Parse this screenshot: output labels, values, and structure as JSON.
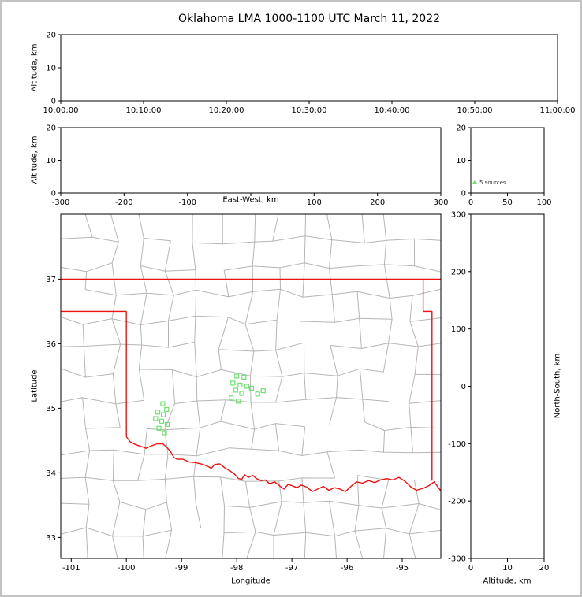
{
  "title": "Oklahoma LMA 1000-1100 UTC March 11, 2022",
  "labels": {
    "altitude_axis": "Altitude, km",
    "east_west_axis": "East-West, km",
    "north_south_axis": "North-South, km",
    "longitude_axis": "Longitude",
    "latitude_axis": "Latitude",
    "histogram_annotation": "5 sources"
  },
  "colors": {
    "state_border": "#ee1111",
    "county_line": "#b5b5b5",
    "station_marker": "#6fe06f",
    "axis_line": "#000000",
    "page_frame": "#c3c3c3",
    "annotation_text": "#333333"
  },
  "chart_data": [
    {
      "panel": "time-altitude",
      "type": "scatter",
      "xlabel": "",
      "ylabel": "Altitude, km",
      "xticks": [
        "10:00:00",
        "10:10:00",
        "10:20:00",
        "10:30:00",
        "10:40:00",
        "10:50:00",
        "11:00:00"
      ],
      "yticks": [
        0,
        10,
        20
      ],
      "ylim": [
        0,
        20
      ],
      "points": []
    },
    {
      "panel": "eastwest-altitude",
      "type": "scatter",
      "xlabel": "East-West, km",
      "ylabel": "Altitude, km",
      "xticks": [
        -300,
        -200,
        -100,
        0,
        100,
        200,
        300
      ],
      "xlim": [
        -300,
        300
      ],
      "yticks": [
        0,
        10,
        20
      ],
      "ylim": [
        0,
        20
      ],
      "points": []
    },
    {
      "panel": "altitude-histogram",
      "type": "histogram",
      "annotation": "5 sources",
      "xticks": [
        0,
        50,
        100
      ],
      "xlim": [
        0,
        100
      ],
      "yticks": [
        0,
        10,
        20
      ],
      "ylim": [
        0,
        20
      ],
      "points": []
    },
    {
      "panel": "plan-view-map",
      "type": "scatter",
      "xlabel": "Longitude",
      "ylabel": "Latitude",
      "xticks": [
        -101,
        -100,
        -99,
        -98,
        -97,
        -96,
        -95
      ],
      "xlim": [
        -101.19,
        -94.3
      ],
      "yticks": [
        33,
        34,
        35,
        36,
        37
      ],
      "ylim": [
        32.675,
        38.005
      ],
      "stations_lon_lat": [
        [
          -99.34,
          35.07
        ],
        [
          -99.27,
          34.98
        ],
        [
          -99.43,
          34.94
        ],
        [
          -99.33,
          34.9
        ],
        [
          -99.47,
          34.84
        ],
        [
          -99.36,
          34.8
        ],
        [
          -99.26,
          34.75
        ],
        [
          -99.41,
          34.69
        ],
        [
          -99.31,
          34.62
        ],
        [
          -98.0,
          35.5
        ],
        [
          -97.87,
          35.48
        ],
        [
          -98.07,
          35.39
        ],
        [
          -97.94,
          35.36
        ],
        [
          -97.82,
          35.34
        ],
        [
          -98.02,
          35.28
        ],
        [
          -97.91,
          35.23
        ],
        [
          -98.1,
          35.16
        ],
        [
          -97.97,
          35.11
        ],
        [
          -97.73,
          35.31
        ],
        [
          -97.62,
          35.22
        ],
        [
          -97.52,
          35.27
        ]
      ],
      "state_border_lon_lat": {
        "kansas_37n": [
          [
            -101.19,
            37.0
          ],
          [
            -94.3,
            37.0
          ]
        ],
        "west_36_5n": [
          [
            -101.19,
            36.5
          ],
          [
            -100.0,
            36.5
          ]
        ],
        "west_100w": [
          [
            -100.0,
            36.5
          ],
          [
            -100.0,
            34.56
          ]
        ],
        "east": [
          [
            -94.62,
            37.0
          ],
          [
            -94.62,
            36.5
          ],
          [
            -94.46,
            36.5
          ],
          [
            -94.46,
            33.88
          ]
        ],
        "red_river": [
          [
            -100.0,
            34.56
          ],
          [
            -99.93,
            34.48
          ],
          [
            -99.84,
            34.44
          ],
          [
            -99.74,
            34.41
          ],
          [
            -99.64,
            34.38
          ],
          [
            -99.54,
            34.42
          ],
          [
            -99.44,
            34.45
          ],
          [
            -99.34,
            34.45
          ],
          [
            -99.27,
            34.4
          ],
          [
            -99.2,
            34.33
          ],
          [
            -99.14,
            34.24
          ],
          [
            -99.08,
            34.21
          ],
          [
            -98.97,
            34.21
          ],
          [
            -98.87,
            34.17
          ],
          [
            -98.76,
            34.16
          ],
          [
            -98.65,
            34.14
          ],
          [
            -98.55,
            34.11
          ],
          [
            -98.46,
            34.07
          ],
          [
            -98.4,
            34.13
          ],
          [
            -98.31,
            34.14
          ],
          [
            -98.22,
            34.08
          ],
          [
            -98.12,
            34.03
          ],
          [
            -98.04,
            33.98
          ],
          [
            -97.97,
            33.91
          ],
          [
            -97.91,
            33.9
          ],
          [
            -97.86,
            33.97
          ],
          [
            -97.79,
            33.93
          ],
          [
            -97.71,
            33.96
          ],
          [
            -97.64,
            33.91
          ],
          [
            -97.56,
            33.88
          ],
          [
            -97.48,
            33.89
          ],
          [
            -97.4,
            33.83
          ],
          [
            -97.31,
            33.86
          ],
          [
            -97.21,
            33.79
          ],
          [
            -97.14,
            33.75
          ],
          [
            -97.07,
            33.82
          ],
          [
            -96.99,
            33.8
          ],
          [
            -96.91,
            33.77
          ],
          [
            -96.83,
            33.81
          ],
          [
            -96.73,
            33.78
          ],
          [
            -96.63,
            33.71
          ],
          [
            -96.53,
            33.75
          ],
          [
            -96.43,
            33.79
          ],
          [
            -96.33,
            33.73
          ],
          [
            -96.23,
            33.77
          ],
          [
            -96.13,
            33.75
          ],
          [
            -96.03,
            33.71
          ],
          [
            -95.93,
            33.79
          ],
          [
            -95.83,
            33.86
          ],
          [
            -95.72,
            33.84
          ],
          [
            -95.61,
            33.88
          ],
          [
            -95.5,
            33.85
          ],
          [
            -95.39,
            33.89
          ],
          [
            -95.28,
            33.91
          ],
          [
            -95.17,
            33.89
          ],
          [
            -95.06,
            33.93
          ],
          [
            -94.95,
            33.87
          ],
          [
            -94.84,
            33.78
          ],
          [
            -94.74,
            33.73
          ],
          [
            -94.62,
            33.76
          ],
          [
            -94.52,
            33.8
          ],
          [
            -94.42,
            33.86
          ],
          [
            -94.3,
            33.72
          ]
        ]
      }
    },
    {
      "panel": "altitude-northsouth",
      "type": "scatter",
      "xlabel": "Altitude, km",
      "ylabel": "North-South, km",
      "xticks": [
        0,
        10,
        20
      ],
      "xlim": [
        0,
        20
      ],
      "yticks": [
        -300,
        -200,
        -100,
        0,
        100,
        200,
        300
      ],
      "ylim": [
        -300,
        300
      ],
      "points": []
    }
  ]
}
